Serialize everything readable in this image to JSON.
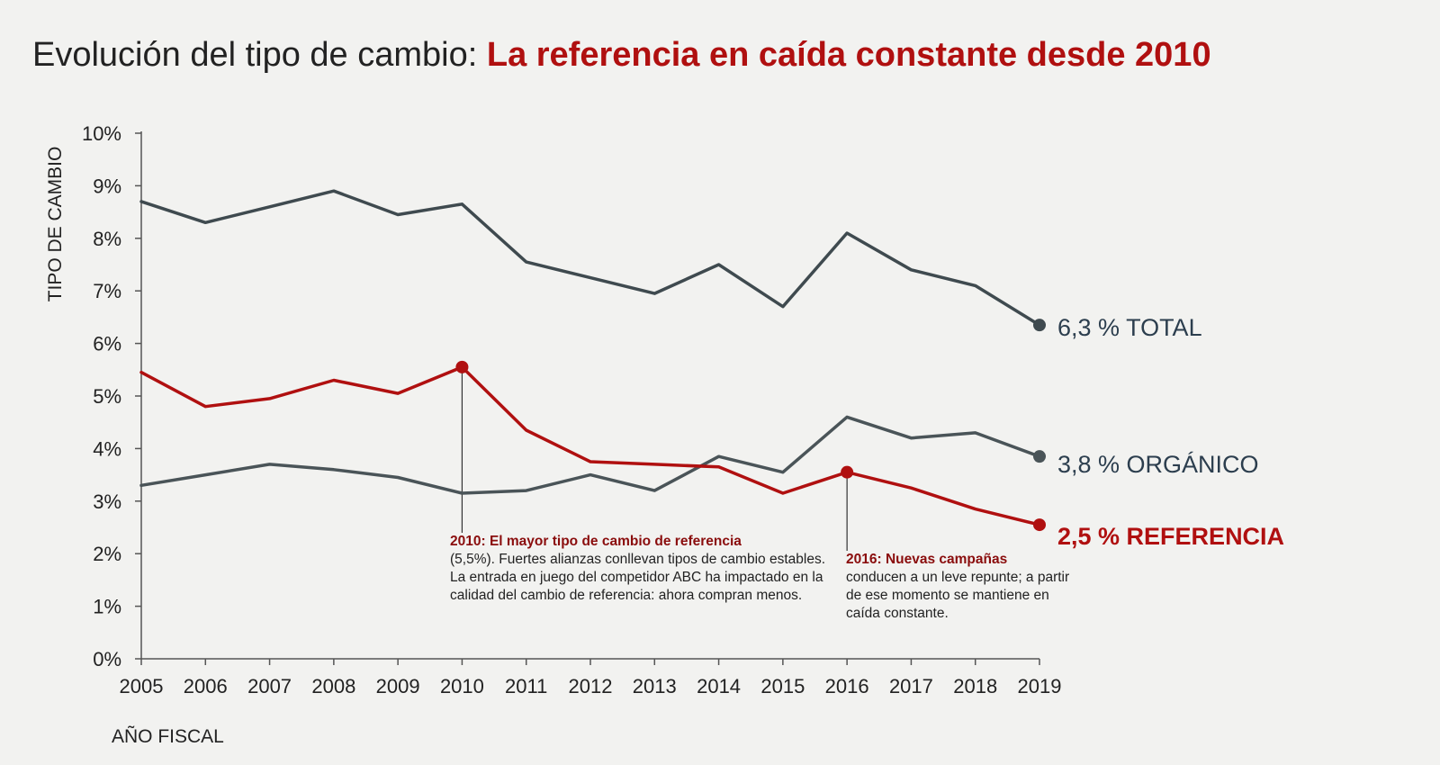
{
  "title": {
    "prefix": "Evolución del tipo de cambio:",
    "highlight": "La referencia en caída constante desde 2010"
  },
  "colors": {
    "total": "#3f4a4f",
    "organic": "#4a5458",
    "referral": "#b01010",
    "axis": "#555555"
  },
  "annotations": {
    "a2010": {
      "lead": "2010: El mayor tipo de cambio de referencia",
      "body": "(5,5%). Fuertes alianzas conllevan tipos de cambio estables. La entrada en juego del competidor ABC ha impactado en la calidad del cambio de referencia: ahora compran menos."
    },
    "a2016": {
      "lead": "2016: Nuevas campañas",
      "body": "conducen a un leve repunte; a partir de ese momento se mantiene en caída constante."
    }
  },
  "chart_data": {
    "type": "line",
    "x": [
      2005,
      2006,
      2007,
      2008,
      2009,
      2010,
      2011,
      2012,
      2013,
      2014,
      2015,
      2016,
      2017,
      2018,
      2019
    ],
    "xlabel": "AÑO FISCAL",
    "ylabel": "TIPO DE CAMBIO",
    "ylim": [
      0,
      10
    ],
    "yticks": [
      "0%",
      "1%",
      "2%",
      "3%",
      "4%",
      "5%",
      "6%",
      "7%",
      "8%",
      "9%",
      "10%"
    ],
    "grid": false,
    "series": [
      {
        "key": "total",
        "label_value": "6,3 %",
        "label_name": "TOTAL",
        "values": [
          8.7,
          8.3,
          8.6,
          8.9,
          8.45,
          8.65,
          7.55,
          7.25,
          6.95,
          7.5,
          6.7,
          8.1,
          7.4,
          7.1,
          6.35
        ]
      },
      {
        "key": "organic",
        "label_value": "3,8 %",
        "label_name": "ORGÁNICO",
        "values": [
          3.3,
          3.5,
          3.7,
          3.6,
          3.45,
          3.15,
          3.2,
          3.5,
          3.2,
          3.85,
          3.55,
          4.6,
          4.2,
          4.3,
          3.85
        ]
      },
      {
        "key": "referral",
        "label_value": "2,5 %",
        "label_name": "REFERENCIA",
        "values": [
          5.45,
          4.8,
          4.95,
          5.3,
          5.05,
          5.55,
          4.35,
          3.75,
          3.7,
          3.65,
          3.15,
          3.55,
          3.25,
          2.85,
          2.55
        ]
      }
    ],
    "highlight_points": [
      {
        "series": "referral",
        "x": 2010
      },
      {
        "series": "referral",
        "x": 2016
      }
    ]
  }
}
